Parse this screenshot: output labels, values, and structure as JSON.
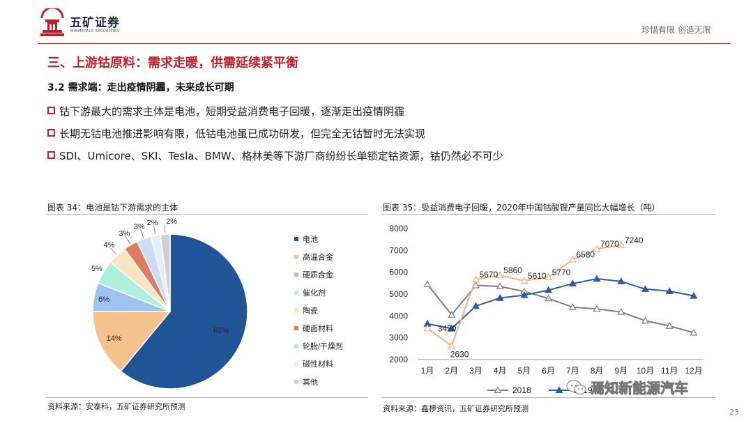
{
  "header": {
    "logo_cn": "五矿证券",
    "logo_en": "MINMETALS SECURITIES",
    "slogan": "珍惜有限  创造无限"
  },
  "section_title": "三、上游钴原料：需求走暖，供需延续紧平衡",
  "sub_title": "3.2 需求端：走出疫情阴霾，未来成长可期",
  "bullets": [
    "钴下游最大的需求主体是电池，短期受益消费电子回暖，逐渐走出疫情阴霾",
    "长期无钴电池推进影响有限，低钴电池虽已成功研发，但完全无钴暂时无法实现",
    "SDI、Umicore、SKI、Tesla、BMW、格林美等下游厂商纷纷长单锁定钴资源，钴仍然必不可少"
  ],
  "figure_left": {
    "title": "图表 34：电池是钴下游需求的主体",
    "source": "资料来源：安泰科，五矿证券研究所预测"
  },
  "figure_right": {
    "title": "图表 35：受益消费电子回暖，2020年中国钴酸锂产量同比大幅增长（吨）",
    "source": "资料来源：鑫椤资讯，五矿证券研究所预测"
  },
  "watermark": "焉知新能源汽车",
  "page_number": "23",
  "colors": {
    "brand_red": "#c0202a",
    "pie": [
      "#1f5597",
      "#f5c28e",
      "#9dc3f0",
      "#aef0dd",
      "#f7e5c4",
      "#e07b5e",
      "#c9ddf5",
      "#e2eef9",
      "#d0d0d0"
    ],
    "line_2018": "#7f7f7f",
    "line_2019": "#2e5c9a",
    "line_2020": "#f4b183"
  },
  "chart_data": [
    {
      "type": "pie",
      "categories": [
        "电池",
        "高温合金",
        "硬质合金",
        "催化剂",
        "陶瓷",
        "硬面材料",
        "轮胎/干燥剂",
        "磁性材料",
        "其他"
      ],
      "values": [
        61,
        14,
        6,
        5,
        4,
        3,
        3,
        2,
        2
      ],
      "value_labels": [
        "61%",
        "14%",
        "6%",
        "5%",
        "4%",
        "3%",
        "3%",
        "2%",
        "2%"
      ],
      "legend": "right"
    },
    {
      "type": "line",
      "categories": [
        "1月",
        "2月",
        "3月",
        "4月",
        "5月",
        "6月",
        "7月",
        "8月",
        "9月",
        "10月",
        "11月",
        "12月"
      ],
      "ylim": [
        2000,
        8000
      ],
      "yticks": [
        2000,
        3000,
        4000,
        5000,
        6000,
        7000,
        8000
      ],
      "legend": "bottom",
      "series": [
        {
          "name": "2018",
          "marker": "triangle-open",
          "values": [
            5450,
            4050,
            5400,
            5350,
            5120,
            4800,
            4400,
            4320,
            4180,
            3780,
            3540,
            3230
          ]
        },
        {
          "name": "2019",
          "marker": "triangle-filled",
          "values": [
            3640,
            3420,
            4450,
            4820,
            4950,
            5180,
            5480,
            5700,
            5580,
            5230,
            5130,
            4920
          ]
        },
        {
          "name": "2020",
          "marker": "triangle-open",
          "values": [
            3430,
            2630,
            5670,
            5860,
            5610,
            5770,
            6580,
            7070,
            7240,
            null,
            null,
            null
          ],
          "data_labels": [
            "",
            "2630",
            "5670",
            "5860",
            "5610",
            "5770",
            "6580",
            "7070",
            "7240",
            "",
            "",
            ""
          ]
        }
      ],
      "annotations": [
        "3420"
      ]
    }
  ]
}
